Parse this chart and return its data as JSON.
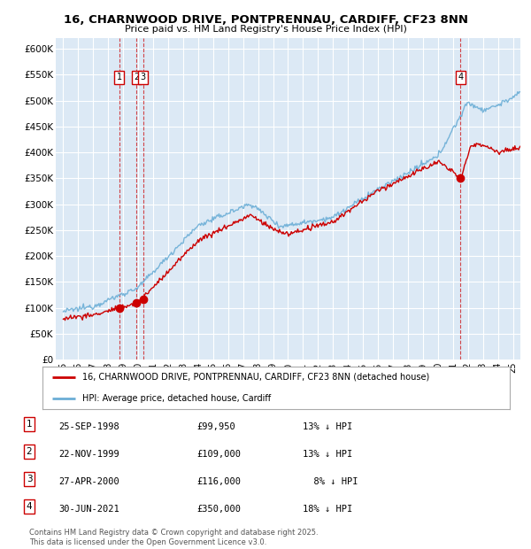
{
  "title_line1": "16, CHARNWOOD DRIVE, PONTPRENNAU, CARDIFF, CF23 8NN",
  "title_line2": "Price paid vs. HM Land Registry's House Price Index (HPI)",
  "ylabel_ticks": [
    "£0",
    "£50K",
    "£100K",
    "£150K",
    "£200K",
    "£250K",
    "£300K",
    "£350K",
    "£400K",
    "£450K",
    "£500K",
    "£550K",
    "£600K"
  ],
  "ytick_values": [
    0,
    50000,
    100000,
    150000,
    200000,
    250000,
    300000,
    350000,
    400000,
    450000,
    500000,
    550000,
    600000
  ],
  "plot_bg_color": "#dce9f5",
  "grid_color": "#ffffff",
  "hpi_color": "#6baed6",
  "price_color": "#cc0000",
  "transactions": [
    {
      "num": 1,
      "date_x": 1998.73,
      "price": 99950,
      "label": "1"
    },
    {
      "num": 2,
      "date_x": 1999.9,
      "price": 109000,
      "label": "2"
    },
    {
      "num": 3,
      "date_x": 2000.32,
      "price": 116000,
      "label": "3"
    },
    {
      "num": 4,
      "date_x": 2021.5,
      "price": 350000,
      "label": "4"
    }
  ],
  "dashed_line_color": "#cc0000",
  "legend_label_price": "16, CHARNWOOD DRIVE, PONTPRENNAU, CARDIFF, CF23 8NN (detached house)",
  "legend_label_hpi": "HPI: Average price, detached house, Cardiff",
  "table_rows": [
    {
      "num": "1",
      "date": "25-SEP-1998",
      "price": "£99,950",
      "note": "13% ↓ HPI"
    },
    {
      "num": "2",
      "date": "22-NOV-1999",
      "price": "£109,000",
      "note": "13% ↓ HPI"
    },
    {
      "num": "3",
      "date": "27-APR-2000",
      "price": "£116,000",
      "note": "  8% ↓ HPI"
    },
    {
      "num": "4",
      "date": "30-JUN-2021",
      "price": "£350,000",
      "note": "18% ↓ HPI"
    }
  ],
  "footer": "Contains HM Land Registry data © Crown copyright and database right 2025.\nThis data is licensed under the Open Government Licence v3.0.",
  "xlim": [
    1994.5,
    2025.5
  ],
  "ylim": [
    0,
    620000
  ],
  "xtick_years": [
    1995,
    1996,
    1997,
    1998,
    1999,
    2000,
    2001,
    2002,
    2003,
    2004,
    2005,
    2006,
    2007,
    2008,
    2009,
    2010,
    2011,
    2012,
    2013,
    2014,
    2015,
    2016,
    2017,
    2018,
    2019,
    2020,
    2021,
    2022,
    2023,
    2024,
    2025
  ],
  "xtick_labels": [
    "95",
    "96",
    "97",
    "98",
    "99",
    "00",
    "01",
    "02",
    "03",
    "04",
    "05",
    "06",
    "07",
    "08",
    "09",
    "10",
    "11",
    "12",
    "13",
    "14",
    "15",
    "16",
    "17",
    "18",
    "19",
    "20",
    "21",
    "22",
    "23",
    "24",
    "25"
  ]
}
